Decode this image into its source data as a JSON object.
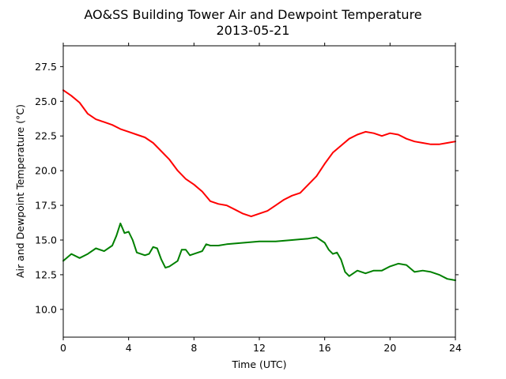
{
  "chart_data": {
    "type": "line",
    "title": "AO&SS Building Tower Air and Dewpoint Temperature",
    "subtitle": "2013-05-21",
    "xlabel": "Time (UTC)",
    "ylabel": "Air and Dewpoint Temperature (°C)",
    "xlim": [
      0,
      24
    ],
    "ylim": [
      8.0,
      29.0
    ],
    "xticks": [
      0,
      4,
      8,
      12,
      16,
      20,
      24
    ],
    "yticks": [
      10.0,
      12.5,
      15.0,
      17.5,
      20.0,
      22.5,
      25.0,
      27.5
    ],
    "grid": false,
    "legend": "none",
    "series": [
      {
        "color": "#ff0000",
        "x": [
          0,
          0.5,
          1,
          1.5,
          2,
          2.5,
          3,
          3.5,
          4,
          4.5,
          5,
          5.5,
          6,
          6.5,
          7,
          7.5,
          8,
          8.5,
          9,
          9.5,
          10,
          10.5,
          11,
          11.5,
          12,
          12.5,
          13,
          13.5,
          14,
          14.5,
          15,
          15.5,
          16,
          16.5,
          17,
          17.5,
          18,
          18.5,
          19,
          19.5,
          20,
          20.5,
          21,
          21.5,
          22,
          22.5,
          23,
          23.5,
          24
        ],
        "values": [
          25.8,
          25.4,
          24.9,
          24.1,
          23.7,
          23.5,
          23.3,
          23.0,
          22.8,
          22.6,
          22.4,
          22.0,
          21.4,
          20.8,
          20.0,
          19.4,
          19.0,
          18.5,
          17.8,
          17.6,
          17.5,
          17.2,
          16.9,
          16.7,
          16.9,
          17.1,
          17.5,
          17.9,
          18.2,
          18.4,
          19.0,
          19.6,
          20.5,
          21.3,
          21.8,
          22.3,
          22.6,
          22.8,
          22.7,
          22.5,
          22.7,
          22.6,
          22.3,
          22.1,
          22.0,
          21.9,
          21.9,
          22.0,
          22.1
        ]
      },
      {
        "color": "#008000",
        "x": [
          0,
          0.5,
          1,
          1.5,
          2,
          2.5,
          3,
          3.25,
          3.5,
          3.75,
          4,
          4.25,
          4.5,
          5,
          5.25,
          5.5,
          5.75,
          6,
          6.25,
          6.5,
          7,
          7.25,
          7.5,
          7.75,
          8,
          8.5,
          8.75,
          9,
          9.5,
          10,
          11,
          12,
          13,
          14,
          15,
          15.5,
          15.75,
          16,
          16.25,
          16.5,
          16.75,
          17,
          17.25,
          17.5,
          18,
          18.5,
          19,
          19.5,
          20,
          20.5,
          21,
          21.5,
          22,
          22.5,
          23,
          23.5,
          24
        ],
        "values": [
          13.5,
          14.0,
          13.7,
          14.0,
          14.4,
          14.2,
          14.6,
          15.3,
          16.2,
          15.5,
          15.6,
          15.0,
          14.1,
          13.9,
          14.0,
          14.5,
          14.4,
          13.6,
          13.0,
          13.1,
          13.5,
          14.3,
          14.3,
          13.9,
          14.0,
          14.2,
          14.7,
          14.6,
          14.6,
          14.7,
          14.8,
          14.9,
          14.9,
          15.0,
          15.1,
          15.2,
          15.0,
          14.8,
          14.3,
          14.0,
          14.1,
          13.6,
          12.7,
          12.4,
          12.8,
          12.6,
          12.8,
          12.8,
          13.1,
          13.3,
          13.2,
          12.7,
          12.8,
          12.7,
          12.5,
          12.2,
          12.1
        ]
      }
    ]
  }
}
